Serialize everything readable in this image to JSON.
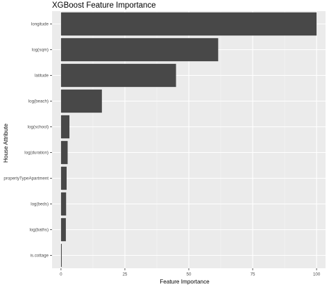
{
  "chart_data": {
    "type": "bar",
    "orientation": "horizontal",
    "title": "XGBoost Feature Importance",
    "xlabel": "Feature Importance",
    "ylabel": "House Attribute",
    "categories": [
      "longitude",
      "log(sqm)",
      "latitude",
      "log(beach)",
      "log(school)",
      "log(duration)",
      "propertyTypeApartment",
      "log(beds)",
      "log(baths)",
      "is.cottage"
    ],
    "values": [
      100,
      61.5,
      45,
      16,
      3.3,
      2.6,
      2.2,
      2.0,
      1.9,
      0.3
    ],
    "xlim": [
      -3.5,
      103.5
    ],
    "xticks": [
      0,
      25,
      50,
      75,
      100
    ],
    "xtick_labels": [
      "0",
      "25",
      "50",
      "75",
      "100"
    ],
    "grid": true,
    "colors": {
      "bar": "#484848",
      "panel": "#ebebeb",
      "grid_major": "#ffffff",
      "grid_minor": "#f5f5f5"
    }
  }
}
